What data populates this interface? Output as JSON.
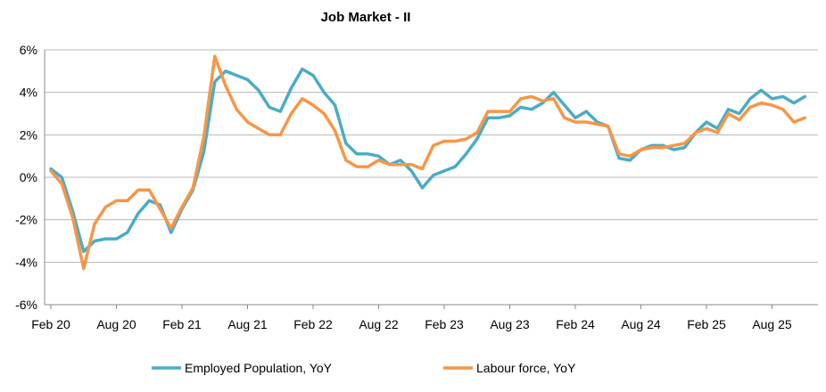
{
  "chart_data": {
    "type": "line",
    "title": "Job Market - II",
    "xlabel": "",
    "ylabel": "",
    "ylim": [
      -6,
      6
    ],
    "y_ticks": [
      -6,
      -4,
      -2,
      0,
      2,
      4,
      6
    ],
    "y_tick_labels": [
      "-6%",
      "-4%",
      "-2%",
      "0%",
      "2%",
      "4%",
      "6%"
    ],
    "x_tick_labels": [
      "Feb 20",
      "Aug 20",
      "Feb 21",
      "Aug 21",
      "Feb 22",
      "Aug 22",
      "Feb 23",
      "Aug 23",
      "Feb 24",
      "Aug 24",
      "Feb 25",
      "Aug 25"
    ],
    "x_tick_interval_months": 6,
    "x_start": "2020-02",
    "grid": true,
    "legend": "bottom",
    "series": [
      {
        "name": "Employed Population, YoY",
        "color": "#4BACC6",
        "values": [
          0.4,
          0.0,
          -1.6,
          -3.5,
          -3.0,
          -2.9,
          -2.9,
          -2.6,
          -1.7,
          -1.1,
          -1.3,
          -2.6,
          -1.5,
          -0.6,
          1.2,
          4.5,
          5.0,
          4.8,
          4.6,
          4.1,
          3.3,
          3.1,
          4.2,
          5.1,
          4.8,
          4.0,
          3.4,
          1.6,
          1.1,
          1.1,
          1.0,
          0.6,
          0.8,
          0.3,
          -0.5,
          0.1,
          0.3,
          0.5,
          1.1,
          1.8,
          2.8,
          2.8,
          2.9,
          3.3,
          3.2,
          3.5,
          4.0,
          3.4,
          2.8,
          3.1,
          2.6,
          2.4,
          0.9,
          0.8,
          1.3,
          1.5,
          1.5,
          1.3,
          1.4,
          2.1,
          2.6,
          2.3,
          3.2,
          3.0,
          3.7,
          4.1,
          3.7,
          3.8,
          3.5,
          3.8
        ]
      },
      {
        "name": "Labour force, YoY",
        "color": "#F79646",
        "values": [
          0.3,
          -0.3,
          -1.9,
          -4.3,
          -2.2,
          -1.4,
          -1.1,
          -1.1,
          -0.6,
          -0.6,
          -1.5,
          -2.4,
          -1.4,
          -0.5,
          1.9,
          5.7,
          4.3,
          3.2,
          2.6,
          2.3,
          2.0,
          2.0,
          3.0,
          3.7,
          3.4,
          3.0,
          2.2,
          0.8,
          0.5,
          0.5,
          0.8,
          0.6,
          0.6,
          0.6,
          0.4,
          1.5,
          1.7,
          1.7,
          1.8,
          2.1,
          3.1,
          3.1,
          3.1,
          3.7,
          3.8,
          3.6,
          3.7,
          2.8,
          2.6,
          2.6,
          2.5,
          2.4,
          1.1,
          1.0,
          1.3,
          1.4,
          1.4,
          1.5,
          1.6,
          2.1,
          2.3,
          2.1,
          3.0,
          2.7,
          3.3,
          3.5,
          3.4,
          3.2,
          2.6,
          2.8
        ]
      }
    ]
  }
}
